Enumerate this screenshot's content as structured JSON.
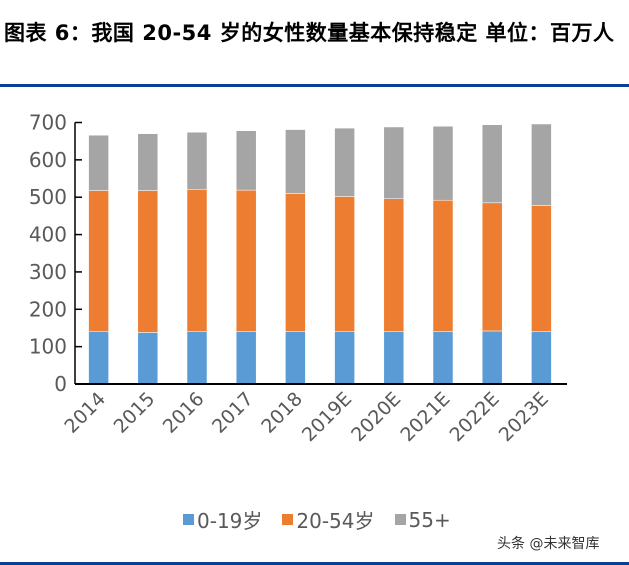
{
  "title": "图表 6：我国 20-54 岁的女性数量基本保持稳定 单位：百万人",
  "watermark": "头条 @未来智库",
  "chart_data": {
    "type": "bar",
    "stacked": true,
    "title": "图表 6：我国 20-54 岁的女性数量基本保持稳定 单位：百万人",
    "categories": [
      "2014",
      "2015",
      "2016",
      "2017",
      "2018",
      "2019E",
      "2020E",
      "2021E",
      "2022E",
      "2023E"
    ],
    "series": [
      {
        "name": "0-19岁",
        "color": "#5b9bd5",
        "values": [
          140,
          138,
          140,
          141,
          141,
          140,
          141,
          141,
          142,
          141
        ]
      },
      {
        "name": "20-54岁",
        "color": "#ed7d31",
        "values": [
          378,
          380,
          380,
          378,
          369,
          362,
          355,
          351,
          343,
          337
        ]
      },
      {
        "name": "55+",
        "color": "#a5a5a5",
        "values": [
          148,
          152,
          154,
          159,
          171,
          183,
          192,
          198,
          209,
          218
        ]
      }
    ],
    "ylim": [
      0,
      700
    ],
    "yticks": [
      0,
      100,
      200,
      300,
      400,
      500,
      600,
      700
    ],
    "grid": false,
    "legend": "bottom"
  }
}
